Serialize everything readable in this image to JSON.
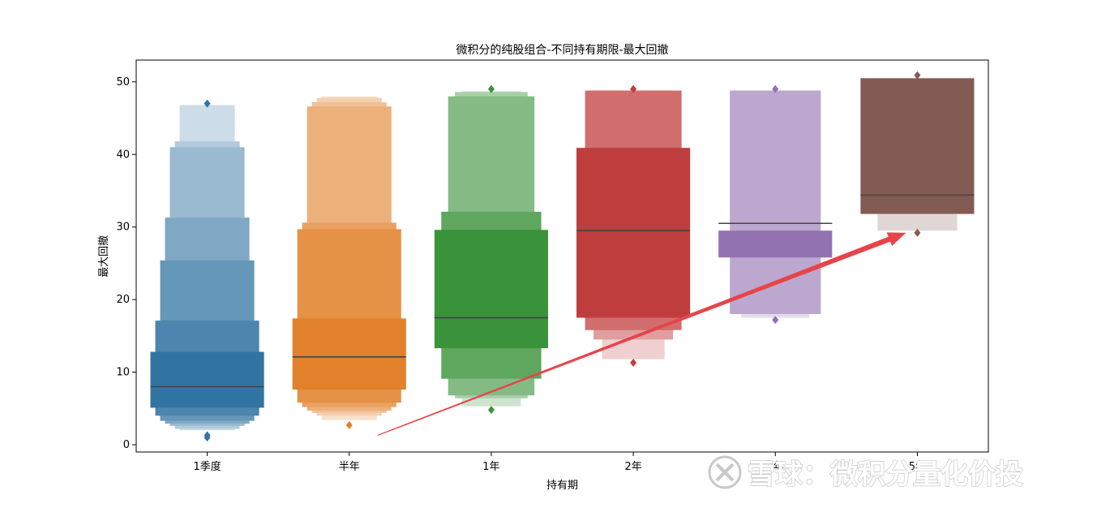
{
  "chart_data": {
    "type": "boxen",
    "title": "微积分的纯股组合-不同持有期限-最大回撤",
    "xlabel": "持有期",
    "ylabel": "最大回撤",
    "ylim": [
      -1,
      53
    ],
    "yticks": [
      0,
      10,
      20,
      30,
      40,
      50
    ],
    "grid": false,
    "categories": [
      "1季度",
      "半年",
      "1年",
      "2年",
      "3年",
      "5年"
    ],
    "colors": [
      "#3274a1",
      "#e1812c",
      "#3a923a",
      "#c03d3e",
      "#9372b2",
      "#845b53"
    ],
    "series": [
      {
        "medians": [
          8.0,
          12.1,
          17.5,
          29.5,
          30.5,
          34.4
        ],
        "letter_values": [
          [
            [
              5.1,
              12.8
            ],
            [
              4.0,
              17.1
            ],
            [
              3.3,
              25.4
            ],
            [
              2.9,
              31.3
            ],
            [
              2.6,
              41.0
            ],
            [
              2.2,
              41.8
            ],
            [
              2.0,
              46.8
            ]
          ],
          [
            [
              7.6,
              17.4
            ],
            [
              5.8,
              29.7
            ],
            [
              5.2,
              30.6
            ],
            [
              4.7,
              46.6
            ],
            [
              4.4,
              47.2
            ],
            [
              4.0,
              47.8
            ],
            [
              3.4,
              48.0
            ]
          ],
          [
            [
              13.3,
              29.6
            ],
            [
              9.1,
              32.1
            ],
            [
              6.8,
              48.0
            ],
            [
              6.4,
              48.6
            ],
            [
              5.3,
              48.7
            ]
          ],
          [
            [
              17.5,
              40.9
            ],
            [
              15.8,
              48.8
            ],
            [
              14.5,
              48.8
            ],
            [
              11.8,
              48.8
            ]
          ],
          [
            [
              25.8,
              29.5
            ],
            [
              18.0,
              48.8
            ],
            [
              17.5,
              48.8
            ]
          ],
          [
            [
              31.8,
              50.5
            ],
            [
              29.5,
              31.8
            ]
          ]
        ],
        "outliers": [
          [
            1.3,
            1.0,
            47.0
          ],
          [
            2.7
          ],
          [
            4.8,
            49.0
          ],
          [
            11.3,
            49.0
          ],
          [
            17.2,
            49.0
          ],
          [
            29.2,
            50.9
          ]
        ]
      }
    ],
    "annotations": [
      {
        "type": "arrow",
        "from": [
          "半年",
          1.3
        ],
        "to": [
          "5年",
          29.2
        ],
        "color": "#e5454a"
      }
    ]
  },
  "watermark": {
    "text": "雪球：微积分量化价投"
  }
}
